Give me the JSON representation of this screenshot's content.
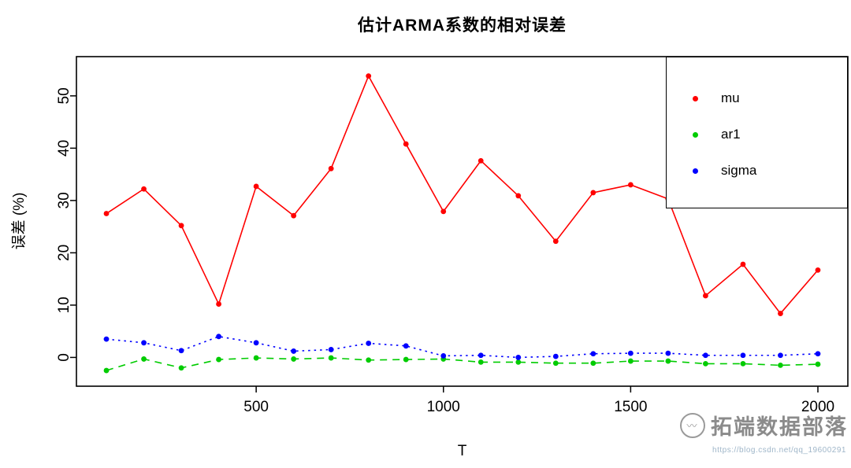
{
  "title": "估计ARMA系数的相对误差",
  "watermark": {
    "name": "拓端数据部落",
    "url": "https://blog.csdn.net/qq_19600291"
  },
  "chart_data": {
    "type": "line",
    "title": "估计ARMA系数的相对误差",
    "xlabel": "T",
    "ylabel": "误差 (%)",
    "x": [
      100,
      200,
      300,
      400,
      500,
      600,
      700,
      800,
      900,
      1000,
      1100,
      1200,
      1300,
      1400,
      1500,
      1600,
      1700,
      1800,
      1900,
      2000
    ],
    "xticks": [
      500,
      1000,
      1500,
      2000
    ],
    "yticks": [
      0,
      10,
      20,
      30,
      40,
      50
    ],
    "xlim": [
      20,
      2080
    ],
    "ylim": [
      -5.5,
      57.5
    ],
    "grid": false,
    "legend_position": "top-right",
    "series": [
      {
        "name": "mu",
        "color": "#ff0000",
        "linestyle": "solid",
        "values": [
          27.5,
          32.2,
          25.2,
          10.2,
          32.7,
          27.1,
          36.1,
          53.8,
          40.8,
          27.9,
          37.6,
          30.9,
          22.2,
          31.5,
          33.0,
          30.3,
          11.8,
          17.8,
          8.4,
          16.7
        ]
      },
      {
        "name": "ar1",
        "color": "#00cc00",
        "linestyle": "dashed",
        "values": [
          -2.5,
          -0.3,
          -2.0,
          -0.4,
          -0.1,
          -0.3,
          -0.1,
          -0.5,
          -0.4,
          -0.3,
          -0.9,
          -0.9,
          -1.1,
          -1.1,
          -0.7,
          -0.7,
          -1.2,
          -1.2,
          -1.5,
          -1.3
        ]
      },
      {
        "name": "sigma",
        "color": "#0000ff",
        "linestyle": "dotted",
        "values": [
          3.5,
          2.8,
          1.3,
          4.0,
          2.8,
          1.2,
          1.5,
          2.7,
          2.2,
          0.3,
          0.4,
          0.0,
          0.2,
          0.7,
          0.8,
          0.8,
          0.4,
          0.4,
          0.4,
          0.7
        ]
      }
    ]
  }
}
